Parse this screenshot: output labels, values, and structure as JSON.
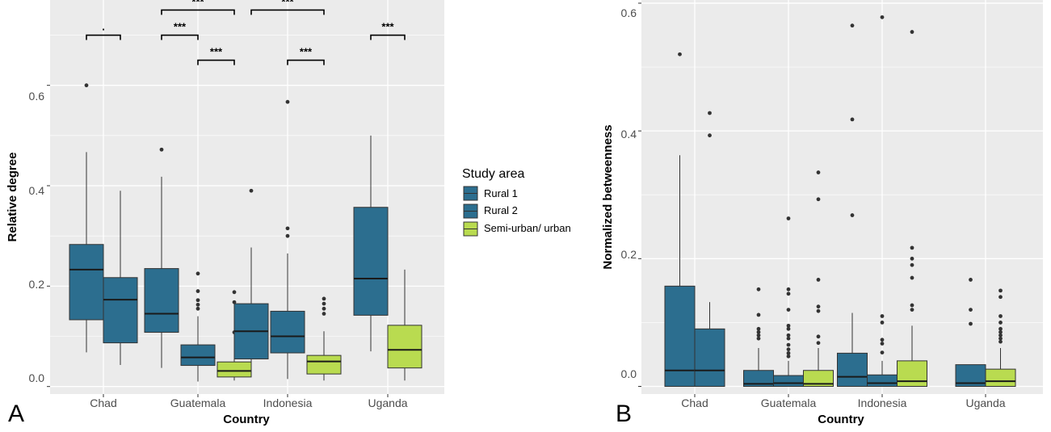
{
  "colors": {
    "panel_bg": "#ebebeb",
    "grid": "#ffffff",
    "rural": "#2c6e8f",
    "semi_urban": "#b9db50",
    "line": "#333333"
  },
  "legend": {
    "title": "Study area",
    "entries": [
      "Rural 1",
      "Rural 2",
      "Semi-urban/ urban"
    ],
    "placement": "between panels, right of panel A"
  },
  "panels": {
    "A": {
      "letter": "A",
      "ylabel": "Relative degree",
      "xlabel": "Country",
      "y_ticks": [
        "0.0",
        "0.2",
        "0.4",
        "0.6"
      ]
    },
    "B": {
      "letter": "B",
      "ylabel": "Normalized betweenness",
      "xlabel": "Country",
      "y_ticks": [
        "0.0",
        "0.2",
        "0.4",
        "0.6"
      ]
    }
  },
  "chart_data": [
    {
      "type": "box",
      "panel": "A",
      "xlabel": "Country",
      "ylabel": "Relative degree",
      "ylim": [
        -0.015,
        0.77
      ],
      "y_ticks": [
        0.0,
        0.2,
        0.4,
        0.6
      ],
      "grid": true,
      "categories": [
        "Chad",
        "Guatemala",
        "Indonesia",
        "Uganda"
      ],
      "boxes": [
        {
          "country": "Chad",
          "group": "Rural 1",
          "min": 0.068,
          "q1": 0.133,
          "median": 0.233,
          "q3": 0.283,
          "max": 0.467,
          "outliers": [
            0.6
          ]
        },
        {
          "country": "Chad",
          "group": "Rural 2",
          "min": 0.043,
          "q1": 0.087,
          "median": 0.173,
          "q3": 0.217,
          "max": 0.39,
          "outliers": []
        },
        {
          "country": "Guatemala",
          "group": "Rural 1",
          "min": 0.037,
          "q1": 0.108,
          "median": 0.145,
          "q3": 0.235,
          "max": 0.418,
          "outliers": [
            0.472
          ]
        },
        {
          "country": "Guatemala",
          "group": "Rural 2",
          "min": 0.01,
          "q1": 0.042,
          "median": 0.058,
          "q3": 0.083,
          "max": 0.14,
          "outliers": [
            0.225,
            0.19,
            0.172,
            0.163,
            0.155
          ]
        },
        {
          "country": "Guatemala",
          "group": "Semi-urban/ urban",
          "min": 0.012,
          "q1": 0.019,
          "median": 0.031,
          "q3": 0.049,
          "max": 0.078,
          "outliers": [
            0.188,
            0.168,
            0.108
          ]
        },
        {
          "country": "Indonesia",
          "group": "Rural 1",
          "min": 0.028,
          "q1": 0.055,
          "median": 0.11,
          "q3": 0.165,
          "max": 0.277,
          "outliers": [
            0.39
          ]
        },
        {
          "country": "Indonesia",
          "group": "Rural 2",
          "min": 0.015,
          "q1": 0.067,
          "median": 0.1,
          "q3": 0.15,
          "max": 0.265,
          "outliers": [
            0.567,
            0.315,
            0.3
          ]
        },
        {
          "country": "Indonesia",
          "group": "Semi-urban/ urban",
          "min": 0.012,
          "q1": 0.025,
          "median": 0.05,
          "q3": 0.062,
          "max": 0.11,
          "outliers": [
            0.175,
            0.165,
            0.155,
            0.145
          ]
        },
        {
          "country": "Uganda",
          "group": "Rural 1",
          "min": 0.07,
          "q1": 0.142,
          "median": 0.215,
          "q3": 0.357,
          "max": 0.5,
          "outliers": []
        },
        {
          "country": "Uganda",
          "group": "Semi-urban/ urban",
          "min": 0.012,
          "q1": 0.037,
          "median": 0.073,
          "q3": 0.122,
          "max": 0.233,
          "outliers": []
        }
      ],
      "annotations": [
        {
          "country": "Chad",
          "label": ".",
          "span": "Rural 1 to Rural 2",
          "y": 0.7
        },
        {
          "country": "Guatemala",
          "label": "***",
          "span": "Rural 1 to Semi-urban/ urban",
          "y": 0.75
        },
        {
          "country": "Guatemala",
          "label": "***",
          "span": "Rural 1 to Rural 2",
          "y": 0.7
        },
        {
          "country": "Guatemala",
          "label": "***",
          "span": "Rural 2 to Semi-urban/ urban",
          "y": 0.65
        },
        {
          "country": "Indonesia",
          "label": "***",
          "span": "Rural 1 to Semi-urban/ urban",
          "y": 0.75
        },
        {
          "country": "Indonesia",
          "label": "***",
          "span": "Rural 2 to Semi-urban/ urban",
          "y": 0.65
        },
        {
          "country": "Uganda",
          "label": "***",
          "span": "Rural 1 to Semi-urban/ urban",
          "y": 0.7
        }
      ]
    },
    {
      "type": "box",
      "panel": "B",
      "xlabel": "Country",
      "ylabel": "Normalized betweenness",
      "ylim": [
        -0.012,
        0.605
      ],
      "y_ticks": [
        0.0,
        0.2,
        0.4,
        0.6
      ],
      "grid": true,
      "categories": [
        "Chad",
        "Guatemala",
        "Indonesia",
        "Uganda"
      ],
      "boxes": [
        {
          "country": "Chad",
          "group": "Rural 1",
          "min": 0.0,
          "q1": 0.0,
          "median": 0.025,
          "q3": 0.157,
          "max": 0.362,
          "outliers": [
            0.52
          ]
        },
        {
          "country": "Chad",
          "group": "Rural 2",
          "min": 0.0,
          "q1": 0.0,
          "median": 0.025,
          "q3": 0.09,
          "max": 0.132,
          "outliers": [
            0.428,
            0.393
          ]
        },
        {
          "country": "Guatemala",
          "group": "Rural 1",
          "min": 0.0,
          "q1": 0.0,
          "median": 0.004,
          "q3": 0.025,
          "max": 0.06,
          "outliers": [
            0.152,
            0.112,
            0.09,
            0.085,
            0.08,
            0.075
          ]
        },
        {
          "country": "Guatemala",
          "group": "Rural 2",
          "min": 0.0,
          "q1": 0.0,
          "median": 0.005,
          "q3": 0.017,
          "max": 0.04,
          "outliers": [
            0.263,
            0.152,
            0.145,
            0.12,
            0.095,
            0.09,
            0.08,
            0.075,
            0.065,
            0.058,
            0.052,
            0.047
          ]
        },
        {
          "country": "Guatemala",
          "group": "Semi-urban/ urban",
          "min": 0.0,
          "q1": 0.0,
          "median": 0.004,
          "q3": 0.025,
          "max": 0.06,
          "outliers": [
            0.335,
            0.293,
            0.167,
            0.125,
            0.118,
            0.078,
            0.068
          ]
        },
        {
          "country": "Indonesia",
          "group": "Rural 1",
          "min": 0.0,
          "q1": 0.0,
          "median": 0.015,
          "q3": 0.052,
          "max": 0.115,
          "outliers": [
            0.565,
            0.418,
            0.268
          ]
        },
        {
          "country": "Indonesia",
          "group": "Rural 2",
          "min": 0.0,
          "q1": 0.0,
          "median": 0.005,
          "q3": 0.018,
          "max": 0.04,
          "outliers": [
            0.578,
            0.11,
            0.1,
            0.073,
            0.067,
            0.053
          ]
        },
        {
          "country": "Indonesia",
          "group": "Semi-urban/ urban",
          "min": 0.0,
          "q1": 0.0,
          "median": 0.008,
          "q3": 0.04,
          "max": 0.095,
          "outliers": [
            0.555,
            0.217,
            0.2,
            0.19,
            0.17,
            0.127,
            0.12
          ]
        },
        {
          "country": "Uganda",
          "group": "Rural 1",
          "min": 0.0,
          "q1": 0.0,
          "median": 0.005,
          "q3": 0.034,
          "max": 0.034,
          "outliers": [
            0.167,
            0.12,
            0.098
          ]
        },
        {
          "country": "Uganda",
          "group": "Semi-urban/ urban",
          "min": 0.0,
          "q1": 0.0,
          "median": 0.008,
          "q3": 0.027,
          "max": 0.06,
          "outliers": [
            0.15,
            0.14,
            0.11,
            0.1,
            0.09,
            0.085,
            0.08,
            0.075,
            0.07
          ]
        }
      ]
    }
  ]
}
